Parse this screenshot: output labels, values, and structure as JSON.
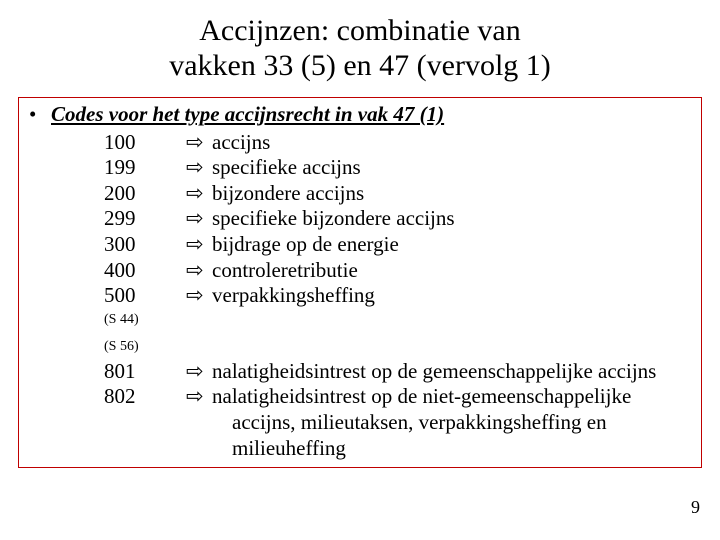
{
  "title_line1": "Accijnzen: combinatie van",
  "title_line2": "vakken 33 (5) en 47 (vervolg 1)",
  "section_heading": "Codes voor het type accijnsrecht in vak 47 (1)",
  "arrow_glyph": "⇨",
  "codes_a": [
    {
      "code": "100",
      "desc": "accijns"
    },
    {
      "code": "199",
      "desc": "specifieke accijns"
    },
    {
      "code": "200",
      "desc": "bijzondere accijns"
    },
    {
      "code": "299",
      "desc": "specifieke bijzondere accijns"
    },
    {
      "code": "300",
      "desc": "bijdrage op de energie"
    },
    {
      "code": "400",
      "desc": "controleretributie"
    },
    {
      "code": "500",
      "desc": "verpakkingsheffing"
    }
  ],
  "note1": "(S 44)",
  "note2": "(S 56)",
  "codes_b": [
    {
      "code": "801",
      "desc": "nalatigheidsintrest op de gemeenschappelijke accijns"
    },
    {
      "code": "802",
      "desc": "nalatigheidsintrest op de niet-gemeenschappelijke accijns, milieutaksen, verpakkingsheffing en milieuheffing"
    }
  ],
  "slide_number": "9",
  "colors": {
    "box_border": "#c00000",
    "text": "#000000",
    "background": "#ffffff"
  }
}
